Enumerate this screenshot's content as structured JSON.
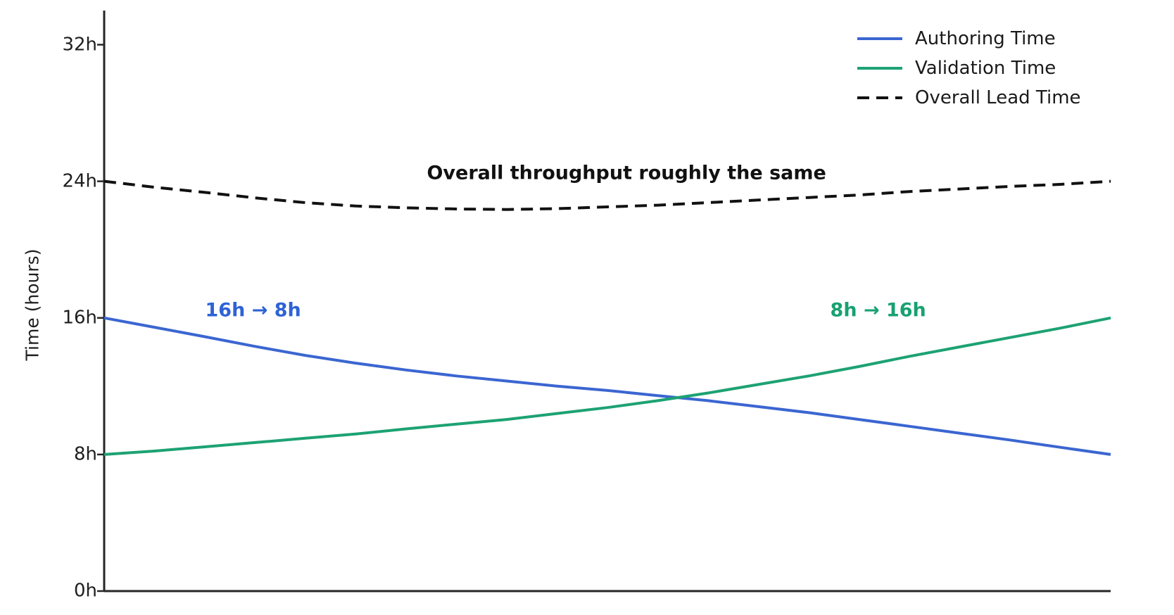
{
  "chart_data": {
    "type": "line",
    "title": "",
    "xlabel": "",
    "ylabel": "Time (hours)",
    "ylim": [
      0,
      34
    ],
    "grid": false,
    "legend_position": "upper right",
    "yticks": [
      {
        "value": 0,
        "label": "0h"
      },
      {
        "value": 8,
        "label": "8h"
      },
      {
        "value": 16,
        "label": "16h"
      },
      {
        "value": 24,
        "label": "24h"
      },
      {
        "value": 32,
        "label": "32h"
      }
    ],
    "x": [
      0,
      0.05,
      0.1,
      0.15,
      0.2,
      0.25,
      0.3,
      0.35,
      0.4,
      0.45,
      0.5,
      0.55,
      0.6,
      0.65,
      0.7,
      0.75,
      0.8,
      0.85,
      0.9,
      0.95,
      1.0
    ],
    "series": [
      {
        "name": "Authoring Time",
        "color": "#3b66d1",
        "style": "solid",
        "values": [
          16.0,
          15.45,
          14.9,
          14.33,
          13.8,
          13.35,
          12.95,
          12.6,
          12.3,
          12.0,
          11.75,
          11.45,
          11.15,
          10.8,
          10.45,
          10.05,
          9.65,
          9.25,
          8.85,
          8.42,
          8.0
        ]
      },
      {
        "name": "Validation Time",
        "color": "#1da273",
        "style": "solid",
        "values": [
          8.0,
          8.2,
          8.45,
          8.7,
          8.95,
          9.2,
          9.5,
          9.78,
          10.05,
          10.4,
          10.75,
          11.15,
          11.6,
          12.1,
          12.6,
          13.15,
          13.75,
          14.3,
          14.85,
          15.4,
          16.0
        ]
      },
      {
        "name": "Overall Lead Time",
        "color": "#111111",
        "style": "dashed",
        "values": [
          24.0,
          23.65,
          23.35,
          23.03,
          22.75,
          22.55,
          22.45,
          22.38,
          22.35,
          22.4,
          22.5,
          22.6,
          22.75,
          22.9,
          23.05,
          23.2,
          23.4,
          23.55,
          23.7,
          23.82,
          24.0
        ]
      }
    ],
    "annotations": [
      {
        "text": "Overall throughput roughly the same",
        "x": 0.519,
        "y": 24.5,
        "color": "#111111"
      },
      {
        "text": "16h → 8h",
        "x": 0.148,
        "y": 16.45,
        "color": "#2e62d6"
      },
      {
        "text": "8h → 16h",
        "x": 0.769,
        "y": 16.45,
        "color": "#18a171"
      }
    ],
    "axis_color": "#262626"
  }
}
